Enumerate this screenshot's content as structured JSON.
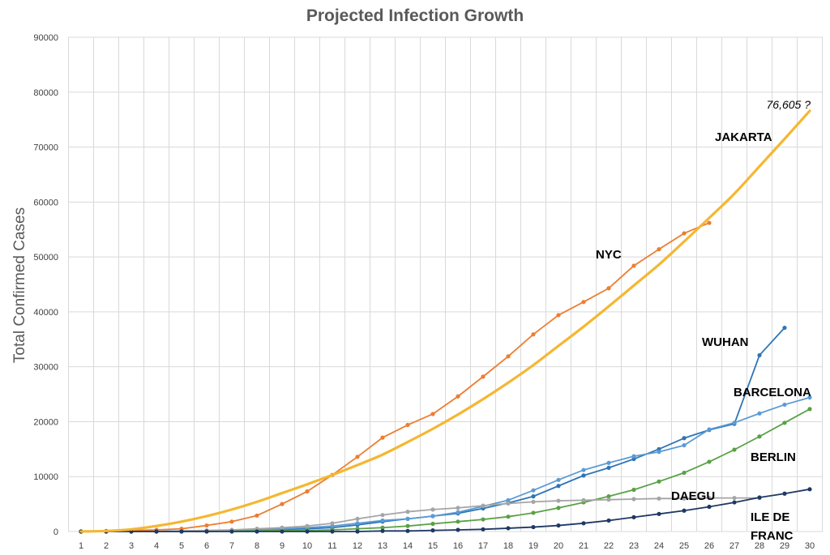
{
  "chart_data": {
    "type": "line",
    "title": "Projected Infection Growth",
    "xlabel": "",
    "ylabel": "Total Confirmed Cases",
    "xlim": [
      1,
      30
    ],
    "ylim": [
      0,
      90000
    ],
    "grid": true,
    "x": [
      1,
      2,
      3,
      4,
      5,
      6,
      7,
      8,
      9,
      10,
      11,
      12,
      13,
      14,
      15,
      16,
      17,
      18,
      19,
      20,
      21,
      22,
      23,
      24,
      25,
      26,
      27,
      28,
      29,
      30
    ],
    "y_ticks": [
      0,
      10000,
      20000,
      30000,
      40000,
      50000,
      60000,
      70000,
      80000,
      90000
    ],
    "series": [
      {
        "name": "JAKARTA",
        "color": "#F5B731",
        "markers": false,
        "smooth": true,
        "values": [
          0,
          100,
          400,
          1000,
          1800,
          2800,
          4000,
          5400,
          7000,
          8600,
          10300,
          12100,
          14000,
          16300,
          18700,
          21300,
          24100,
          27100,
          30300,
          33800,
          37300,
          41000,
          44800,
          48600,
          52800,
          57100,
          61500,
          66500,
          71500,
          76605
        ]
      },
      {
        "name": "NYC",
        "color": "#ED7D31",
        "markers": true,
        "smooth": false,
        "values": [
          0,
          100,
          200,
          300,
          500,
          1100,
          1800,
          2900,
          5000,
          7300,
          10300,
          13600,
          17100,
          19400,
          21400,
          24600,
          28200,
          31900,
          35900,
          39400,
          41800,
          44300,
          48400,
          51400,
          54300,
          56200,
          null,
          null,
          null,
          null
        ]
      },
      {
        "name": "WUHAN",
        "color": "#2E75B6",
        "markers": true,
        "smooth": false,
        "values": [
          0,
          0,
          0,
          0,
          100,
          100,
          200,
          300,
          400,
          500,
          700,
          1200,
          1800,
          2300,
          2800,
          3300,
          4200,
          5200,
          6400,
          8300,
          10200,
          11600,
          13200,
          15000,
          17000,
          18500,
          19600,
          32100,
          37100,
          null
        ]
      },
      {
        "name": "BARCELONA",
        "color": "#5B9BD5",
        "markers": true,
        "smooth": false,
        "values": [
          0,
          0,
          0,
          0,
          100,
          100,
          200,
          300,
          500,
          700,
          1000,
          1500,
          2000,
          2300,
          2800,
          3500,
          4600,
          5700,
          7500,
          9400,
          11200,
          12500,
          13700,
          14500,
          15700,
          18600,
          19800,
          21500,
          23100,
          24400
        ]
      },
      {
        "name": "BERLIN",
        "color": "#59A145",
        "markers": true,
        "smooth": false,
        "values": [
          0,
          0,
          0,
          0,
          0,
          0,
          100,
          100,
          200,
          200,
          300,
          500,
          700,
          1000,
          1400,
          1800,
          2200,
          2700,
          3400,
          4300,
          5300,
          6400,
          7600,
          9100,
          10700,
          12700,
          14900,
          17300,
          19800,
          22300
        ]
      },
      {
        "name": "DAEGU",
        "color": "#A5A5A5",
        "markers": true,
        "smooth": false,
        "values": [
          0,
          0,
          0,
          0,
          100,
          200,
          300,
          500,
          700,
          1000,
          1500,
          2300,
          3000,
          3600,
          4000,
          4300,
          4700,
          5100,
          5400,
          5600,
          5700,
          5800,
          5900,
          6000,
          6000,
          6100,
          6100,
          6100,
          null,
          null
        ]
      },
      {
        "name": "ILE DE FRANC",
        "color": "#1F3864",
        "markers": true,
        "smooth": false,
        "values": [
          0,
          0,
          0,
          0,
          0,
          0,
          0,
          0,
          0,
          0,
          0,
          0,
          100,
          100,
          200,
          300,
          400,
          600,
          800,
          1100,
          1500,
          2000,
          2600,
          3200,
          3800,
          4500,
          5300,
          6200,
          6900,
          7700
        ]
      }
    ],
    "labels": [
      {
        "series": "JAKARTA",
        "text": "JAKARTA"
      },
      {
        "series": "NYC",
        "text": "NYC"
      },
      {
        "series": "WUHAN",
        "text": "WUHAN"
      },
      {
        "series": "BARCELONA",
        "text": "BARCELONA"
      },
      {
        "series": "BERLIN",
        "text": "BERLIN"
      },
      {
        "series": "DAEGU",
        "text": "DAEGU"
      },
      {
        "series": "ILE DE FRANC",
        "text_line1": "ILE DE",
        "text_line2": "FRANC"
      }
    ],
    "annotations": [
      {
        "text": "76,605 ?",
        "x": 30,
        "y": 76605
      }
    ]
  }
}
